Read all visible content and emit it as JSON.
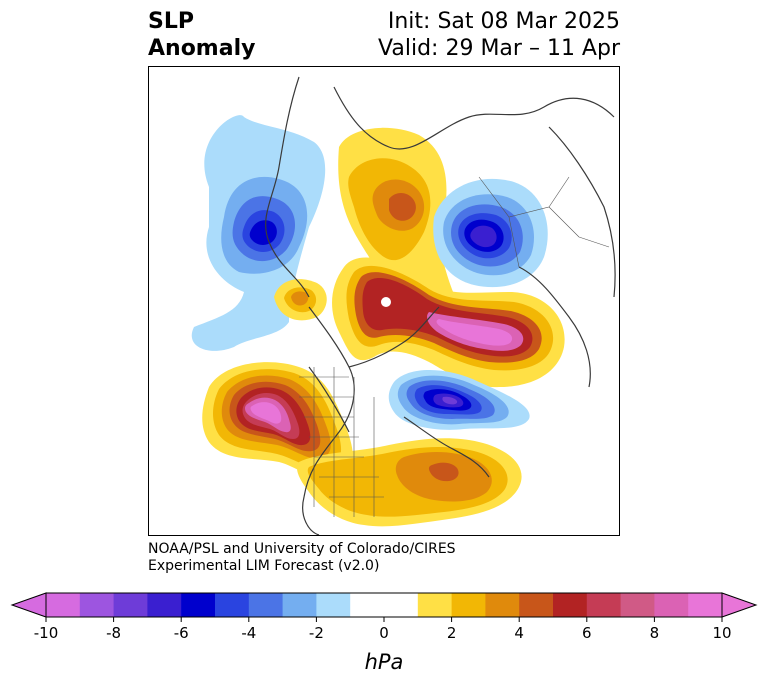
{
  "header": {
    "variable_line1": "SLP",
    "variable_line2": "Anomaly",
    "init": "Init: Sat 08 Mar 2025",
    "valid": "Valid: 29 Mar – 11 Apr"
  },
  "credit": {
    "line1": "NOAA/PSL and University of Colorado/CIRES",
    "line2": "Experimental LIM Forecast (v2.0)"
  },
  "colorbar": {
    "unit": "hPa",
    "ticks": [
      "-10",
      "-8",
      "-6",
      "-4",
      "-2",
      "0",
      "2",
      "4",
      "6",
      "8",
      "10"
    ],
    "colors": [
      "#d66be0",
      "#9d55e0",
      "#6e3cd8",
      "#3a1fd0",
      "#0000cd",
      "#2a44e0",
      "#4b74e6",
      "#74aef0",
      "#abdcfb",
      "#ffffff",
      "#ffffff",
      "#ffe045",
      "#f2b705",
      "#e08a0c",
      "#c8561a",
      "#b22323",
      "#c53c55",
      "#d05a86",
      "#db62b4",
      "#e875d8"
    ],
    "extend_low_color": "#d66be0",
    "extend_high_color": "#e875d8"
  },
  "map": {
    "projection": "north-polar stereographic",
    "region": "Northern Hemisphere",
    "field": "sea level pressure anomaly"
  }
}
